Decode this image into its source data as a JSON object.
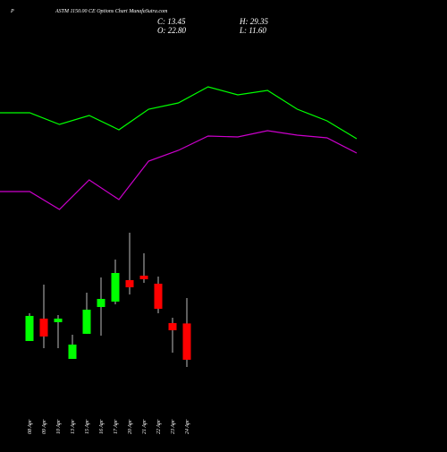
{
  "chart_data": [
    {
      "type": "candlestick",
      "title": "ASTM 1150.00 CE Options Chart MunafaSutra.com",
      "subtitle": "P",
      "annotations": [
        "C: 13.45",
        "H: 29.35",
        "O: 22.80",
        "L: 11.60"
      ],
      "categories": [
        "08 Apr",
        "09 Apr",
        "10 Apr",
        "13 Apr",
        "15 Apr",
        "16 Apr",
        "17 Apr",
        "20 Apr",
        "21 Apr",
        "22 Apr",
        "23 Apr",
        "24 Apr"
      ],
      "open": [
        18.28,
        24.05,
        23.13,
        13.67,
        20.13,
        27.04,
        28.43,
        33.96,
        35.11,
        33.04,
        22.9,
        22.8
      ],
      "high": [
        25.43,
        32.81,
        24.97,
        19.9,
        30.73,
        34.65,
        39.26,
        46.18,
        40.88,
        34.88,
        24.28,
        29.35
      ],
      "low": [
        18.28,
        16.44,
        16.44,
        13.67,
        20.13,
        19.67,
        27.74,
        30.27,
        33.27,
        25.43,
        15.29,
        11.6
      ],
      "close": [
        24.74,
        19.44,
        24.05,
        17.36,
        26.35,
        29.12,
        35.8,
        32.12,
        34.19,
        26.58,
        21.05,
        13.45
      ],
      "up_color": "#00ff00",
      "down_color": "#ff0000",
      "ylim": [
        10,
        50
      ]
    },
    {
      "type": "line",
      "series": [
        {
          "color": "#00ff00",
          "values": [
            374,
            374,
            361,
            371,
            355,
            378,
            385,
            403,
            394,
            399,
            378,
            365,
            345
          ]
        },
        {
          "color": "#cc00cc",
          "values": [
            286,
            286,
            266,
            299,
            277,
            320,
            332,
            348,
            347,
            354,
            349,
            346,
            329
          ]
        }
      ],
      "ylim": [
        0,
        500
      ]
    }
  ]
}
